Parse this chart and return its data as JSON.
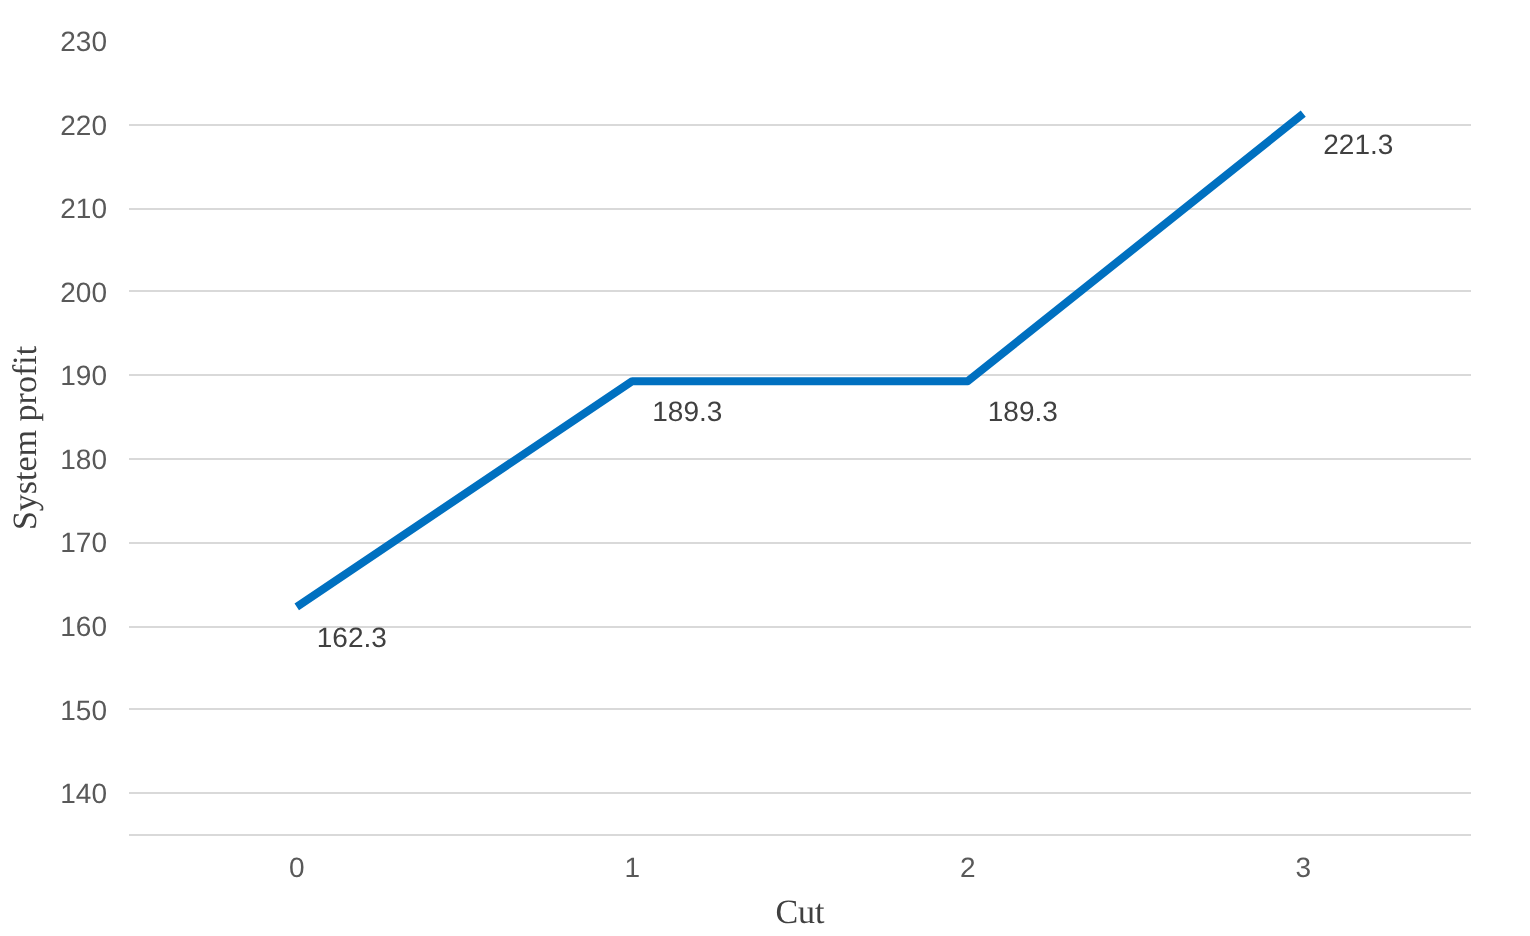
{
  "chart_data": {
    "type": "line",
    "xlabel": "Cut",
    "ylabel": "System profit",
    "categories": [
      "0",
      "1",
      "2",
      "3"
    ],
    "series": [
      {
        "color": "#0070c0",
        "values": [
          162.3,
          189.3,
          189.3,
          221.3
        ]
      }
    ],
    "ylim": [
      135,
      230
    ],
    "yticks": [
      140,
      150,
      160,
      170,
      180,
      190,
      200,
      210,
      220,
      230
    ],
    "grid": "y",
    "data_labels": true,
    "marker": "none",
    "line_style": "solid"
  }
}
